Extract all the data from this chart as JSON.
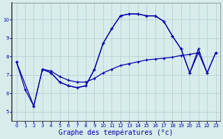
{
  "background_color": "#d8ecec",
  "grid_color": "#b0cccc",
  "line_color": "#0000aa",
  "xlabel": "Graphe des températures (°c)",
  "xlabel_fontsize": 7,
  "ylim": [
    4.5,
    10.9
  ],
  "xlim": [
    -0.5,
    23.5
  ],
  "yticks": [
    5,
    6,
    7,
    8,
    9,
    10
  ],
  "xticks": [
    0,
    1,
    2,
    3,
    4,
    5,
    6,
    7,
    8,
    9,
    10,
    11,
    12,
    13,
    14,
    15,
    16,
    17,
    18,
    19,
    20,
    21,
    22,
    23
  ],
  "line1_x": [
    0,
    1,
    2,
    3,
    4,
    5,
    6,
    7,
    8,
    9,
    10,
    11,
    12,
    13,
    14,
    15,
    16,
    17,
    18,
    19,
    20,
    21
  ],
  "line1_y": [
    7.7,
    6.2,
    5.3,
    7.3,
    7.1,
    6.6,
    6.4,
    6.3,
    6.4,
    7.3,
    8.7,
    9.5,
    10.2,
    10.3,
    10.3,
    10.2,
    10.2,
    9.9,
    9.1,
    8.4,
    7.1,
    8.2
  ],
  "line2_x": [
    0,
    2,
    3,
    4,
    5,
    6,
    7,
    8,
    9,
    10,
    11,
    12,
    13,
    14,
    15,
    16,
    17,
    18,
    19,
    20,
    21,
    22,
    23
  ],
  "line2_y": [
    7.7,
    5.3,
    7.3,
    7.2,
    6.9,
    6.7,
    6.6,
    6.6,
    6.8,
    7.1,
    7.3,
    7.5,
    7.6,
    7.7,
    7.8,
    7.85,
    7.9,
    7.95,
    8.05,
    8.1,
    8.2,
    7.1,
    8.2
  ],
  "line3_x": [
    3,
    4,
    5,
    6,
    7,
    8,
    9,
    10,
    11,
    12,
    13,
    14,
    15,
    16,
    17,
    18,
    19,
    20,
    21,
    22,
    23
  ],
  "line3_y": [
    7.3,
    7.1,
    6.6,
    6.4,
    6.3,
    6.4,
    7.3,
    8.7,
    9.5,
    10.2,
    10.3,
    10.3,
    10.2,
    10.2,
    9.9,
    9.1,
    8.4,
    7.1,
    8.4,
    7.1,
    8.2
  ]
}
